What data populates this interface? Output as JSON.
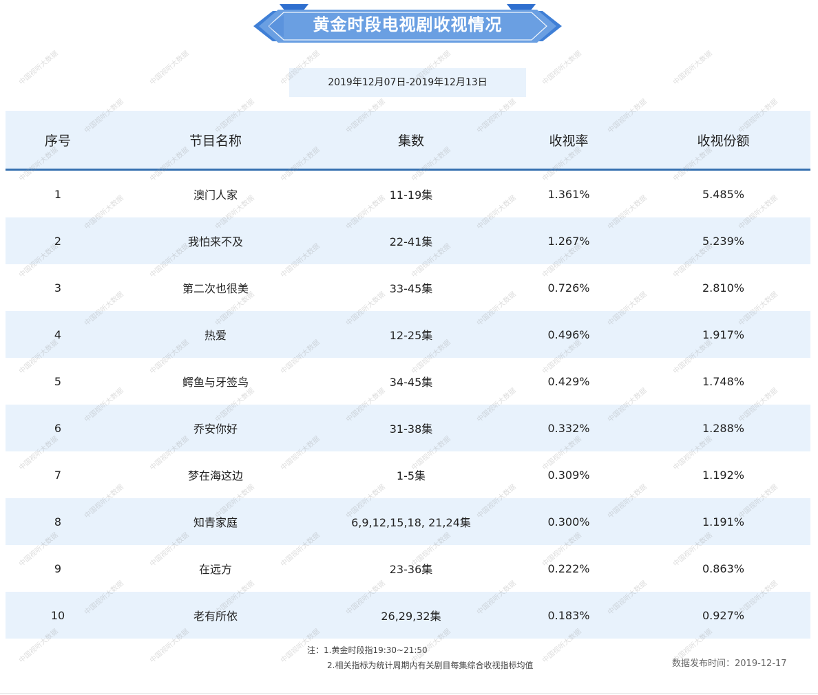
{
  "title": "黄金时段电视剧收视情况",
  "date_range": "2019年12月07日-2019年12月13日",
  "table": {
    "headers": [
      "序号",
      "节目名称",
      "集数",
      "收视率",
      "收视份额"
    ],
    "rows": [
      [
        "1",
        "澳门人家",
        "11-19集",
        "1.361%",
        "5.485%"
      ],
      [
        "2",
        "我怕来不及",
        "22-41集",
        "1.267%",
        "5.239%"
      ],
      [
        "3",
        "第二次也很美",
        "33-45集",
        "0.726%",
        "2.810%"
      ],
      [
        "4",
        "热爱",
        "12-25集",
        "0.496%",
        "1.917%"
      ],
      [
        "5",
        "鳄鱼与牙签鸟",
        "34-45集",
        "0.429%",
        "1.748%"
      ],
      [
        "6",
        "乔安你好",
        "31-38集",
        "0.332%",
        "1.288%"
      ],
      [
        "7",
        "梦在海这边",
        "1-5集",
        "0.309%",
        "1.192%"
      ],
      [
        "8",
        "知青家庭",
        "6,9,12,15,18, 21,24集",
        "0.300%",
        "1.191%"
      ],
      [
        "9",
        "在远方",
        "23-36集",
        "0.222%",
        "0.863%"
      ],
      [
        "10",
        "老有所依",
        "26,29,32集",
        "0.183%",
        "0.927%"
      ]
    ]
  },
  "notes": {
    "line1": "注：1.黄金时段指19:30~21:50",
    "line2": "2.相关指标为统计周期内有关剧目每集综合收视指标均值"
  },
  "release_time": "数据发布时间：2019-12-17",
  "watermark_text": "中国视听大数据",
  "colors": {
    "banner_main": "#5b93dc",
    "banner_dark": "#2f6fcf",
    "row_stripe": "#e8f2fc",
    "header_rule": "#3570b0"
  }
}
